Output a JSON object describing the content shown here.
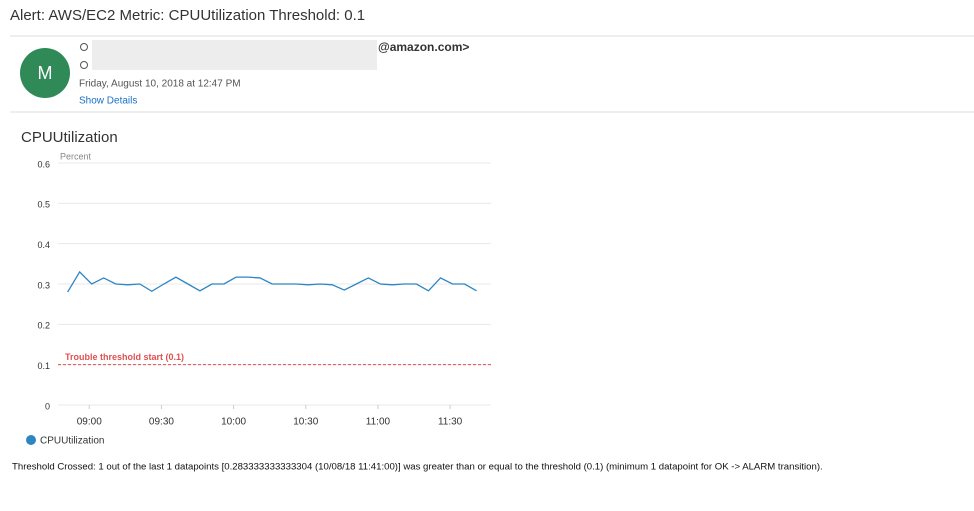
{
  "email": {
    "subject": "Alert: AWS/EC2 Metric: CPUUtilization Threshold: 0.1",
    "avatar": "M",
    "sender": "@amazon.com>",
    "date": "Friday, August 10, 2018 at 12:47 PM",
    "show_details": "Show Details",
    "footer": "Threshold Crossed: 1 out of the last 1 datapoints [0.283333333333304 (10/08/18 11:41:00)] was greater than or equal to the threshold (0.1) (minimum 1 datapoint for OK -> ALARM transition)."
  },
  "chart_data": {
    "type": "line",
    "title": "CPUUtilization",
    "y_label": "Percent",
    "x": [
      "08:51",
      "08:56",
      "09:01",
      "09:06",
      "09:11",
      "09:16",
      "09:21",
      "09:26",
      "09:31",
      "09:36",
      "09:41",
      "09:46",
      "09:51",
      "09:56",
      "10:01",
      "10:06",
      "10:11",
      "10:16",
      "10:21",
      "10:26",
      "10:31",
      "10:36",
      "10:41",
      "10:46",
      "10:51",
      "10:56",
      "11:01",
      "11:06",
      "11:11",
      "11:16",
      "11:21",
      "11:26",
      "11:31",
      "11:36",
      "11:41"
    ],
    "series": [
      {
        "name": "CPUUtilization",
        "color": "#2e86c1",
        "values": [
          0.28,
          0.33,
          0.3,
          0.315,
          0.3,
          0.298,
          0.3,
          0.282,
          0.3,
          0.317,
          0.3,
          0.283,
          0.3,
          0.3,
          0.317,
          0.317,
          0.315,
          0.3,
          0.3,
          0.3,
          0.298,
          0.3,
          0.298,
          0.285,
          0.3,
          0.315,
          0.3,
          0.298,
          0.3,
          0.3,
          0.283,
          0.315,
          0.3,
          0.3,
          0.283
        ]
      }
    ],
    "threshold": {
      "value": 0.1,
      "label": "Trouble threshold start (0.1)",
      "color": "#e05050"
    },
    "xlim": [
      "08:47",
      "11:47"
    ],
    "xticks": [
      "09:00",
      "09:30",
      "10:00",
      "10:30",
      "11:00",
      "11:30"
    ],
    "ylim": [
      0,
      0.6
    ],
    "yticks": [
      0,
      0.1,
      0.2,
      0.3,
      0.4,
      0.5,
      0.6
    ],
    "grid": true,
    "legend": "bottom-left"
  }
}
